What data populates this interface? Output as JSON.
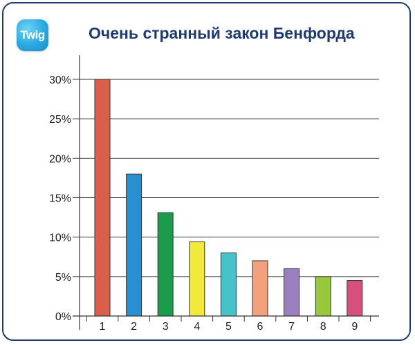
{
  "logo": {
    "text": "Twig",
    "color": "#29a9e1"
  },
  "header": {
    "title": "Очень странный закон Бенфорда",
    "title_color": "#1f3a6b"
  },
  "chart_data": {
    "type": "bar",
    "title": "Очень странный закон Бенфорда",
    "xlabel": "",
    "ylabel": "",
    "categories": [
      "1",
      "2",
      "3",
      "4",
      "5",
      "6",
      "7",
      "8",
      "9"
    ],
    "values": [
      30,
      18,
      13.1,
      9.4,
      8,
      7,
      6,
      5,
      4.5
    ],
    "ylim": [
      0,
      30
    ],
    "yticks": [
      0,
      5,
      10,
      15,
      20,
      25,
      30
    ],
    "ytick_labels": [
      "0%",
      "5%",
      "10%",
      "15%",
      "20%",
      "25%",
      "30%"
    ],
    "grid": true,
    "colors": [
      "#d95f4c",
      "#2a8fd0",
      "#1a9c4c",
      "#f2ea3a",
      "#45c3c8",
      "#f4a07d",
      "#9a80c0",
      "#98c93c",
      "#d6507e"
    ]
  }
}
